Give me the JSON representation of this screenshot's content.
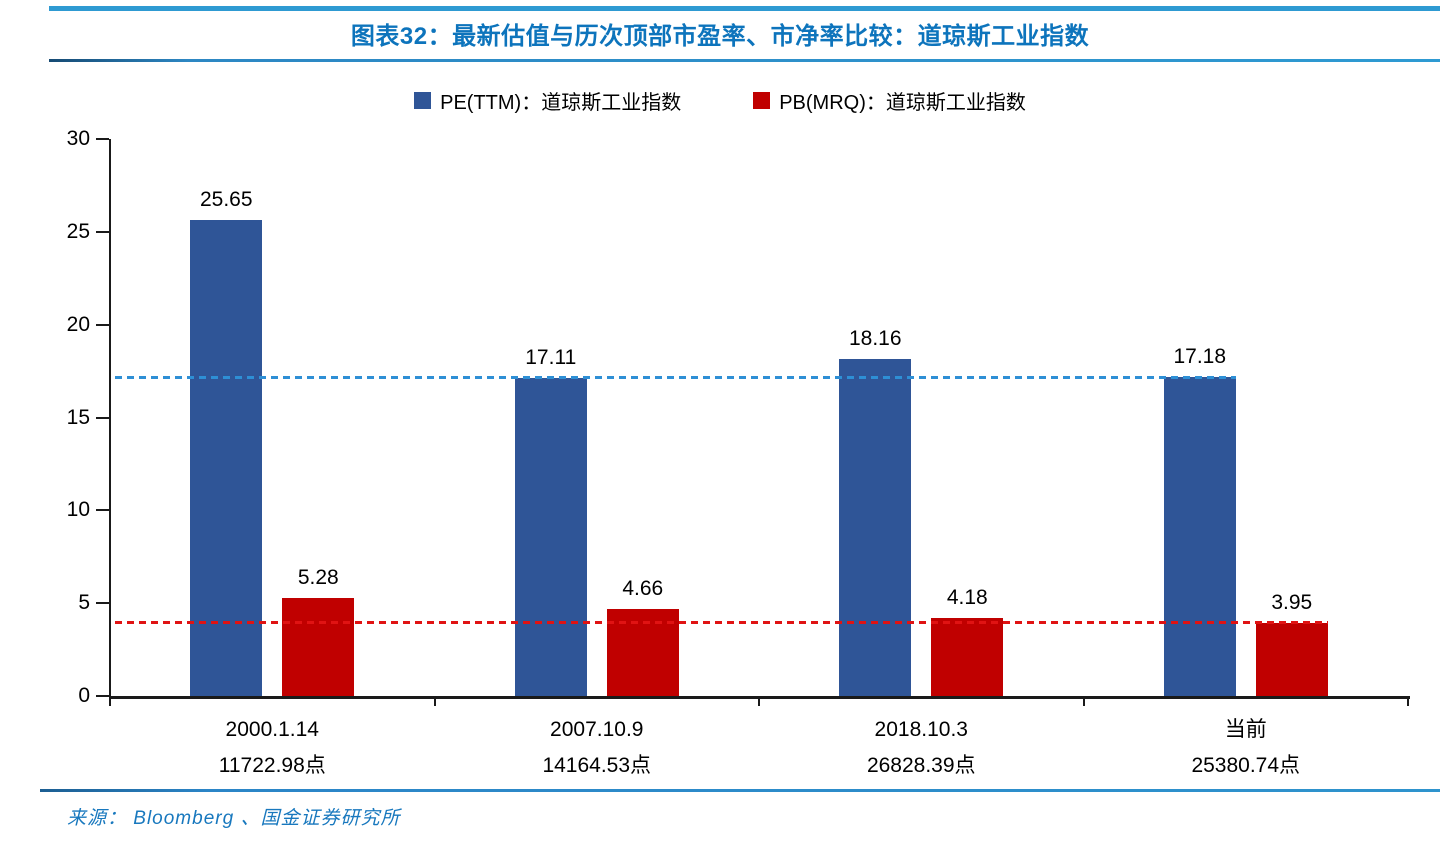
{
  "header": {
    "title": "图表32：最新估值与历次顶部市盈率、市净率比较：道琼斯工业指数"
  },
  "legend": [
    {
      "label": "PE(TTM)：道琼斯工业指数",
      "color": "#2f5597"
    },
    {
      "label": "PB(MRQ)：道琼斯工业指数",
      "color": "#c00000"
    }
  ],
  "chart_data": {
    "type": "bar",
    "title": "图表32：最新估值与历次顶部市盈率、市净率比较：道琼斯工业指数",
    "categories": [
      [
        "2000.1.14",
        "11722.98点"
      ],
      [
        "2007.10.9",
        "14164.53点"
      ],
      [
        "2018.10.3",
        "26828.39点"
      ],
      [
        "当前",
        "25380.74点"
      ]
    ],
    "series": [
      {
        "name": "PE(TTM)：道琼斯工业指数",
        "color": "#2f5597",
        "values": [
          25.65,
          17.11,
          18.16,
          17.18
        ]
      },
      {
        "name": "PB(MRQ)：道琼斯工业指数",
        "color": "#c00000",
        "values": [
          5.28,
          4.66,
          4.18,
          3.95
        ]
      }
    ],
    "value_labels": [
      [
        "25.65",
        "17.11",
        "18.16",
        "17.18"
      ],
      [
        "5.28",
        "4.66",
        "4.18",
        "3.95"
      ]
    ],
    "yticks": [
      "0",
      "5",
      "10",
      "15",
      "20",
      "25",
      "30"
    ],
    "ylim": [
      0,
      30
    ],
    "xlabel": "",
    "ylabel": "",
    "grid": false,
    "legend_position": "top",
    "ref_lines": [
      {
        "value": 17.18,
        "series": 0,
        "color": "#2e8fd5",
        "style": "dashed"
      },
      {
        "value": 3.95,
        "series": 1,
        "color": "#e01313",
        "style": "dashed"
      }
    ]
  },
  "footer": {
    "source": "来源： Bloomberg 、国金证券研究所"
  },
  "colors": {
    "pe_bar": "#2f5597",
    "pb_bar": "#c00000",
    "pe_dash": "#2e8fd5",
    "pb_dash": "#e01313",
    "title_blue": "#0d74bc",
    "rule_blue": "#2e9ad2",
    "source_blue": "#1878be"
  }
}
